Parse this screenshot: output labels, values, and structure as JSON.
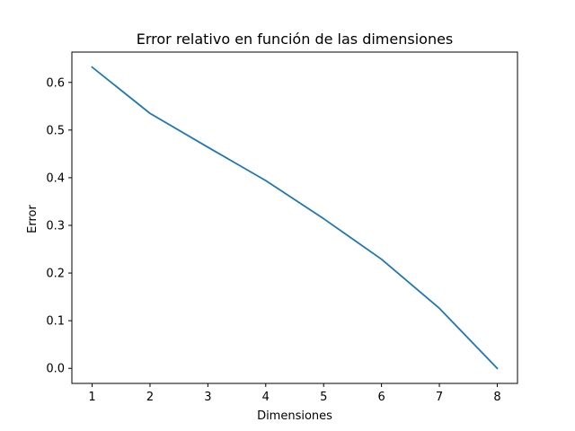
{
  "chart_data": {
    "type": "line",
    "title": "Error relativo en función de las dimensiones",
    "xlabel": "Dimensiones",
    "ylabel": "Error",
    "x": [
      1,
      2,
      3,
      4,
      5,
      6,
      7,
      8
    ],
    "series": [
      {
        "values": [
          0.632,
          0.535,
          0.464,
          0.394,
          0.314,
          0.229,
          0.126,
          0.0
        ],
        "color": "#1f77b4"
      }
    ],
    "xlim": [
      0.65,
      8.35
    ],
    "ylim": [
      -0.0316,
      0.6636
    ],
    "xticks": [
      1,
      2,
      3,
      4,
      5,
      6,
      7,
      8
    ],
    "yticks": [
      0.0,
      0.1,
      0.2,
      0.3,
      0.4,
      0.5,
      0.6
    ],
    "ytick_labels": [
      "0.0",
      "0.1",
      "0.2",
      "0.3",
      "0.4",
      "0.5",
      "0.6"
    ],
    "grid": false,
    "legend": "none"
  }
}
